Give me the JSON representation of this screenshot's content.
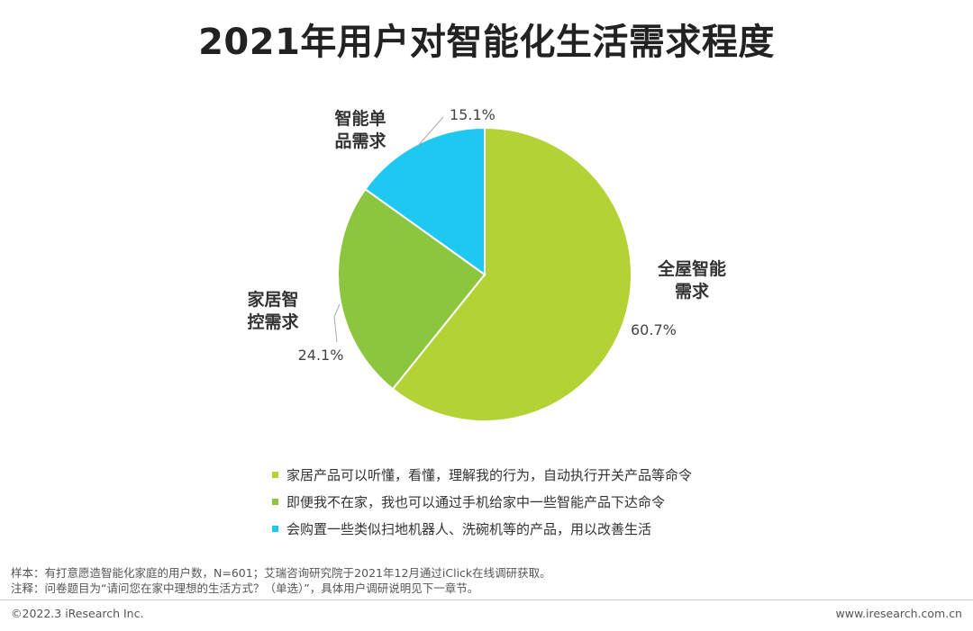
{
  "title": "2021年用户对智能化生活需求程度",
  "chart_data": {
    "type": "pie",
    "start_angle_deg": 0,
    "direction": "clockwise",
    "slices": [
      {
        "label_lines": [
          "全屋智能",
          "需求"
        ],
        "value": 60.7,
        "value_label": "60.7%",
        "color": "#b2d235"
      },
      {
        "label_lines": [
          "家居智",
          "控需求"
        ],
        "value": 24.1,
        "value_label": "24.1%",
        "color": "#8cc63f"
      },
      {
        "label_lines": [
          "智能单",
          "品需求"
        ],
        "value": 15.1,
        "value_label": "15.1%",
        "color": "#1ec8f0"
      }
    ],
    "legend": [
      {
        "text": "家居产品可以听懂，看懂，理解我的行为，自动执行开关产品等命令",
        "color": "#b2d235"
      },
      {
        "text": "即便我不在家，我也可以通过手机给家中一些智能产品下达命令",
        "color": "#8cc63f"
      },
      {
        "text": "会购置一些类似扫地机器人、洗碗机等的产品，用以改善生活",
        "color": "#1ec8f0"
      }
    ]
  },
  "notes": {
    "sample": "样本：有打意愿造智能化家庭的用户数，N=601；艾瑞咨询研究院于2021年12月通过iClick在线调研获取。",
    "remark": "注释：问卷题目为“请问您在家中理想的生活方式？（单选）”，具体用户调研说明见下一章节。"
  },
  "footer": {
    "copyright": "©2022.3 iResearch Inc.",
    "website": "www.iresearch.com.cn"
  }
}
